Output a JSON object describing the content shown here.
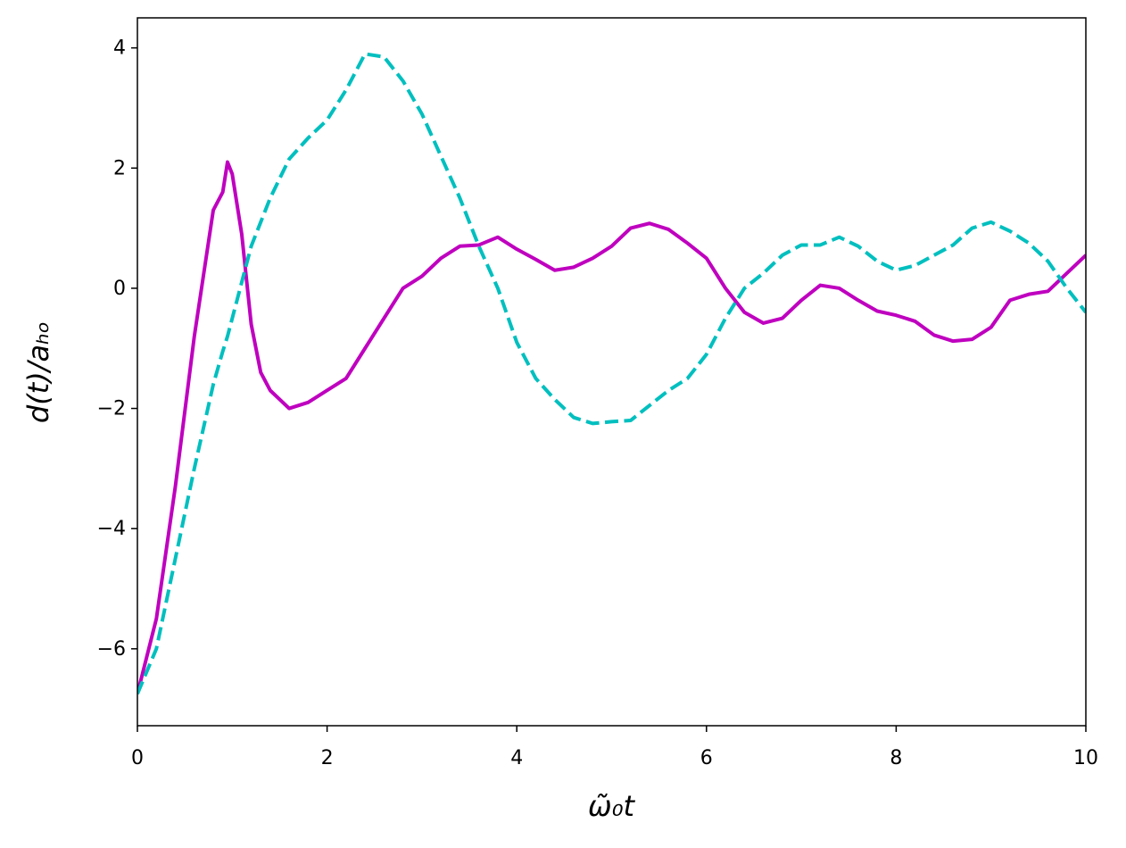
{
  "chart_data": {
    "type": "line",
    "xlabel": "ω̃₀t",
    "ylabel": "d(t)/aₕₒ",
    "x": [
      0,
      0.2,
      0.4,
      0.6,
      0.8,
      0.9,
      0.95,
      1.0,
      1.1,
      1.2,
      1.3,
      1.4,
      1.6,
      1.8,
      2.0,
      2.2,
      2.4,
      2.6,
      2.8,
      3.0,
      3.2,
      3.4,
      3.6,
      3.8,
      4.0,
      4.2,
      4.4,
      4.6,
      4.8,
      5.0,
      5.2,
      5.4,
      5.6,
      5.8,
      6.0,
      6.2,
      6.4,
      6.6,
      6.8,
      7.0,
      7.2,
      7.4,
      7.6,
      7.8,
      8.0,
      8.2,
      8.4,
      8.6,
      8.8,
      9.0,
      9.2,
      9.4,
      9.6,
      9.8,
      10.0
    ],
    "series": [
      {
        "color": "#bf00bf",
        "linestyle": "solid",
        "values": [
          -6.75,
          -5.5,
          -3.3,
          -0.8,
          1.3,
          1.6,
          2.1,
          1.9,
          0.9,
          -0.6,
          -1.4,
          -1.7,
          -2.0,
          -1.9,
          -1.7,
          -1.5,
          -1.0,
          -0.5,
          0.0,
          0.2,
          0.5,
          0.7,
          0.72,
          0.85,
          0.65,
          0.48,
          0.3,
          0.35,
          0.5,
          0.7,
          1.0,
          1.08,
          0.98,
          0.75,
          0.5,
          0.0,
          -0.4,
          -0.58,
          -0.5,
          -0.2,
          0.05,
          0.0,
          -0.2,
          -0.38,
          -0.45,
          -0.55,
          -0.78,
          -0.88,
          -0.85,
          -0.65,
          -0.2,
          -0.1,
          -0.05,
          0.25,
          0.55
        ]
      },
      {
        "color": "#00bfbf",
        "linestyle": "dashed",
        "values": [
          -6.75,
          -6.0,
          -4.5,
          -3.0,
          -1.6,
          -1.05,
          -0.8,
          -0.5,
          0.1,
          0.7,
          1.1,
          1.5,
          2.15,
          2.5,
          2.8,
          3.3,
          3.9,
          3.85,
          3.45,
          2.9,
          2.2,
          1.5,
          0.7,
          0.0,
          -0.9,
          -1.5,
          -1.85,
          -2.15,
          -2.25,
          -2.22,
          -2.2,
          -1.95,
          -1.7,
          -1.5,
          -1.1,
          -0.5,
          0.0,
          0.25,
          0.55,
          0.72,
          0.72,
          0.85,
          0.7,
          0.45,
          0.3,
          0.38,
          0.55,
          0.72,
          1.0,
          1.1,
          0.95,
          0.75,
          0.45,
          0.0,
          -0.4
        ]
      }
    ],
    "xlim": [
      0,
      10
    ],
    "xticks": [
      0,
      2,
      4,
      6,
      8,
      10
    ],
    "ylim": [
      -7.28,
      4.5
    ],
    "yticks": [
      {
        "value": -6,
        "label": "−6"
      },
      {
        "value": -4,
        "label": "−4"
      },
      {
        "value": -2,
        "label": "−2"
      },
      0,
      2,
      4
    ],
    "grid": false
  }
}
